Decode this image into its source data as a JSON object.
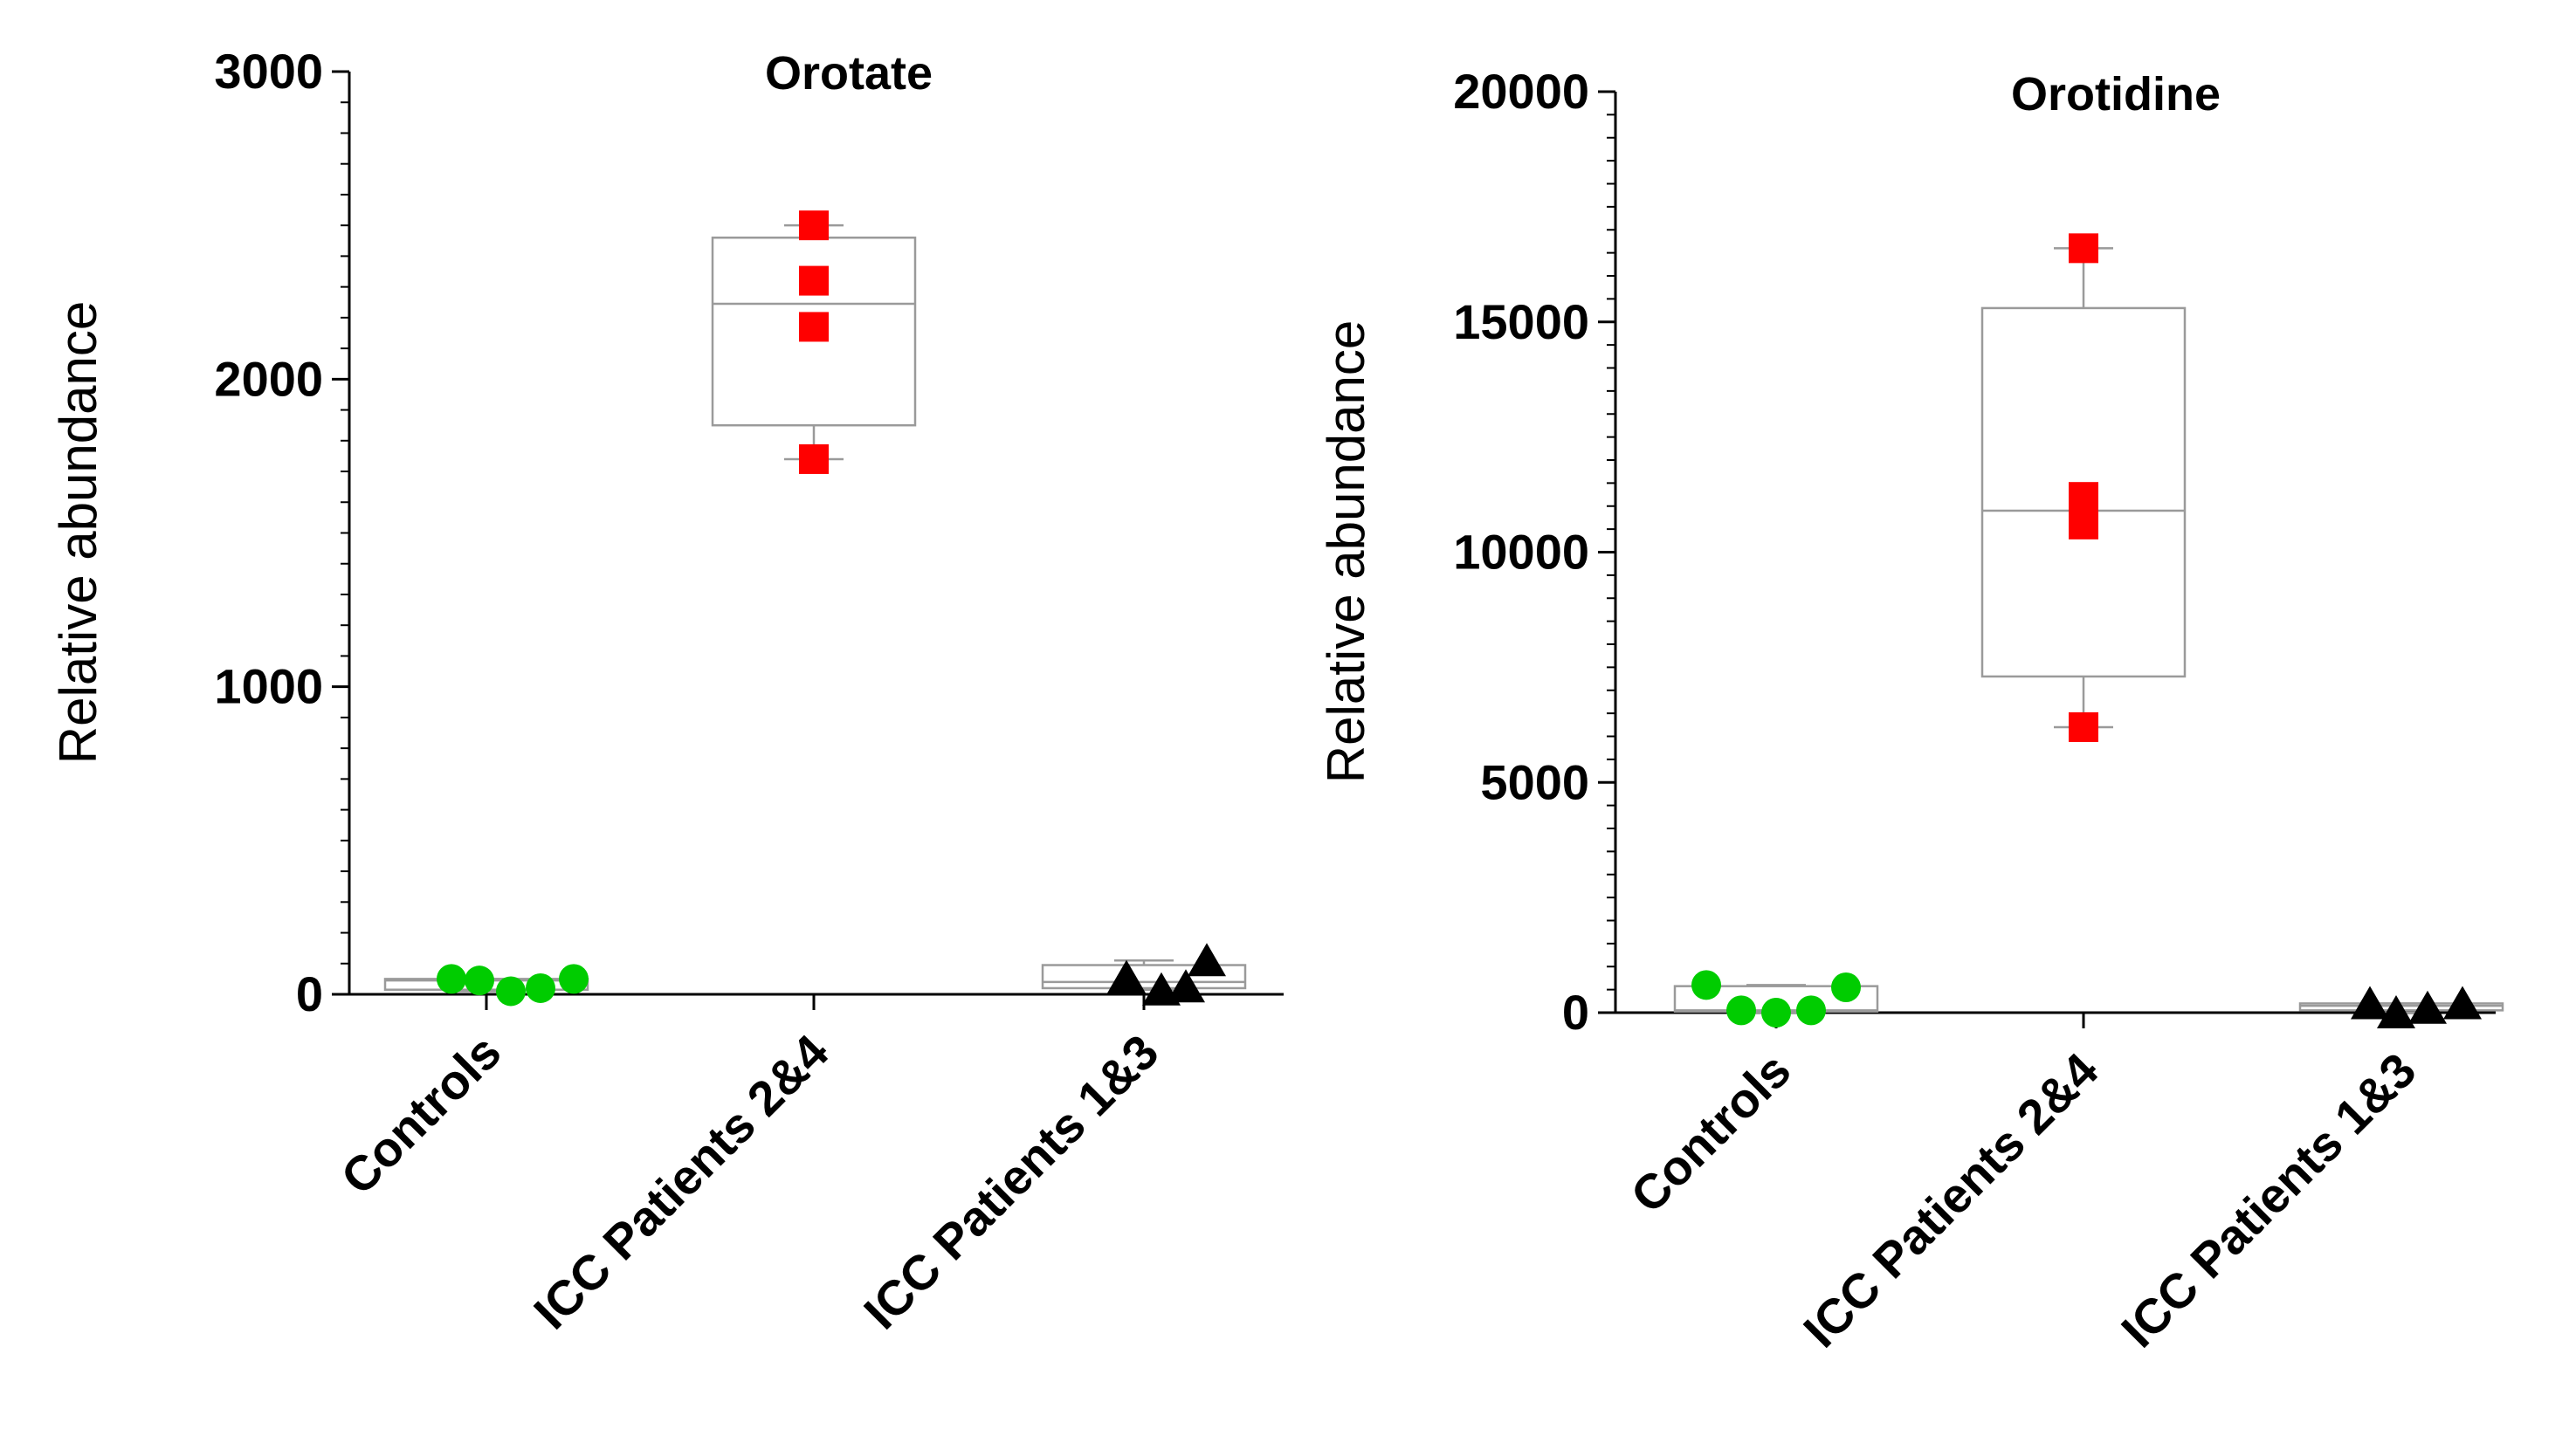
{
  "chart_data": [
    {
      "type": "box",
      "title": "Orotate",
      "ylabel": "Relative abundance",
      "xlabel": "",
      "ylim": [
        0,
        3000
      ],
      "yticks": [
        0,
        1000,
        2000,
        3000
      ],
      "ytick_labels": [
        "0",
        "1000",
        "2000",
        "3000"
      ],
      "categories": [
        "Controls",
        "ICC Patients 2&4",
        "ICC Patients 1&3"
      ],
      "groups": [
        {
          "name": "Controls",
          "marker": "circle",
          "color": "#00cc00",
          "points": [
            50,
            45,
            10,
            20,
            50
          ],
          "box": {
            "min": 10,
            "q1": 15,
            "median": 45,
            "q3": 50,
            "max": 50
          }
        },
        {
          "name": "ICC Patients 2&4",
          "marker": "square",
          "color": "#ff0000",
          "points": [
            2500,
            2320,
            2170,
            1740
          ],
          "box": {
            "min": 1740,
            "q1": 1850,
            "median": 2245,
            "q3": 2460,
            "max": 2500
          }
        },
        {
          "name": "ICC Patients 1&3",
          "marker": "triangle",
          "color": "#000000",
          "points": [
            55,
            15,
            25,
            110
          ],
          "box": {
            "min": 15,
            "q1": 20,
            "median": 40,
            "q3": 95,
            "max": 110
          }
        }
      ]
    },
    {
      "type": "box",
      "title": "Orotidine",
      "ylabel": "Relative abundance",
      "xlabel": "",
      "ylim": [
        0,
        20000
      ],
      "yticks": [
        0,
        5000,
        10000,
        15000,
        20000
      ],
      "ytick_labels": [
        "0",
        "5000",
        "10000",
        "15000",
        "20000"
      ],
      "categories": [
        "Controls",
        "ICC Patients 2&4",
        "ICC Patients 1&3"
      ],
      "groups": [
        {
          "name": "Controls",
          "marker": "circle",
          "color": "#00cc00",
          "points": [
            600,
            50,
            0,
            50,
            550
          ],
          "box": {
            "min": 0,
            "q1": 25,
            "median": 50,
            "q3": 575,
            "max": 600
          }
        },
        {
          "name": "ICC Patients 2&4",
          "marker": "square",
          "color": "#ff0000",
          "points": [
            16600,
            11200,
            10600,
            6200
          ],
          "box": {
            "min": 6200,
            "q1": 7300,
            "median": 10900,
            "q3": 15300,
            "max": 16600
          }
        },
        {
          "name": "ICC Patients 1&3",
          "marker": "triangle",
          "color": "#000000",
          "points": [
            200,
            0,
            100,
            200
          ],
          "box": {
            "min": 0,
            "q1": 50,
            "median": 150,
            "q3": 200,
            "max": 200
          }
        }
      ]
    }
  ]
}
